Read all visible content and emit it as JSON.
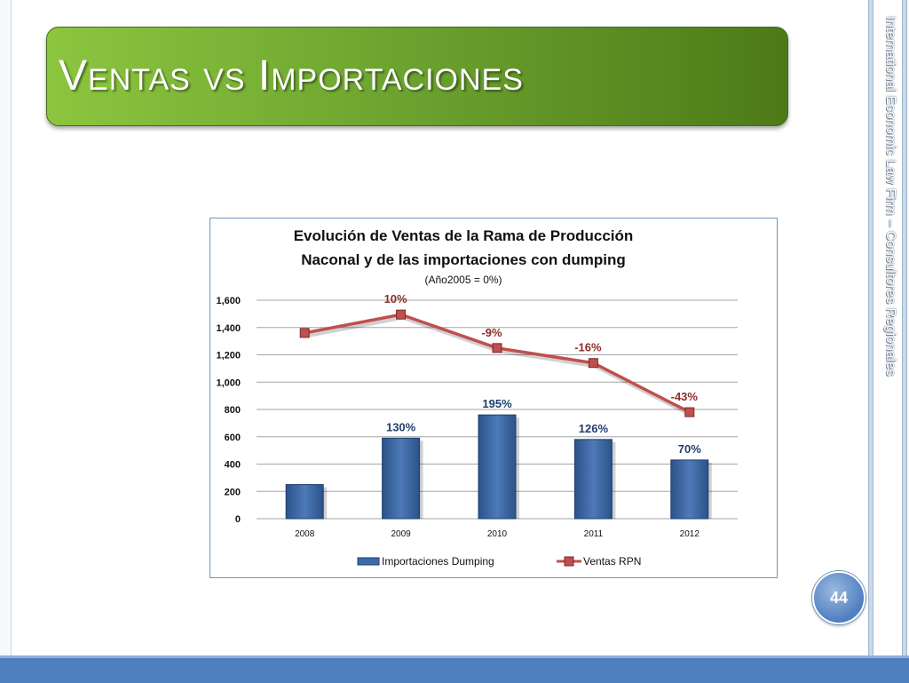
{
  "slide": {
    "title": "Ventas vs Importaciones",
    "side_footer": "International Economic Law Firm – Consultores Regionales",
    "page_number": "44"
  },
  "colors": {
    "title_green": "#6ea530",
    "bar_blue": "#3d6aa8",
    "line_red": "#c0504d",
    "accent_blue": "#4f7fc0"
  },
  "chart_data": {
    "type": "bar",
    "title_line1": "Evolución de Ventas de la Rama de Producción",
    "title_line2": "Naconal y de las importaciones con dumping",
    "subtitle": "(Año2005 = 0%)",
    "categories": [
      "2008",
      "2009",
      "2010",
      "2011",
      "2012"
    ],
    "yticks": [
      "0",
      "200",
      "400",
      "600",
      "800",
      "1,000",
      "1,200",
      "1,400",
      "1,600"
    ],
    "ylim": [
      0,
      1600
    ],
    "grid": true,
    "legend_position": "bottom",
    "series": [
      {
        "name": "Importaciones Dumping",
        "type": "bar",
        "values": [
          250,
          590,
          760,
          580,
          430
        ],
        "labels": [
          "",
          "130%",
          "195%",
          "126%",
          "70%"
        ]
      },
      {
        "name": "Ventas RPN",
        "type": "line",
        "values": [
          1360,
          1495,
          1250,
          1140,
          780
        ],
        "labels": [
          "",
          "10%",
          "-9%",
          "-16%",
          "-43%"
        ]
      }
    ]
  }
}
